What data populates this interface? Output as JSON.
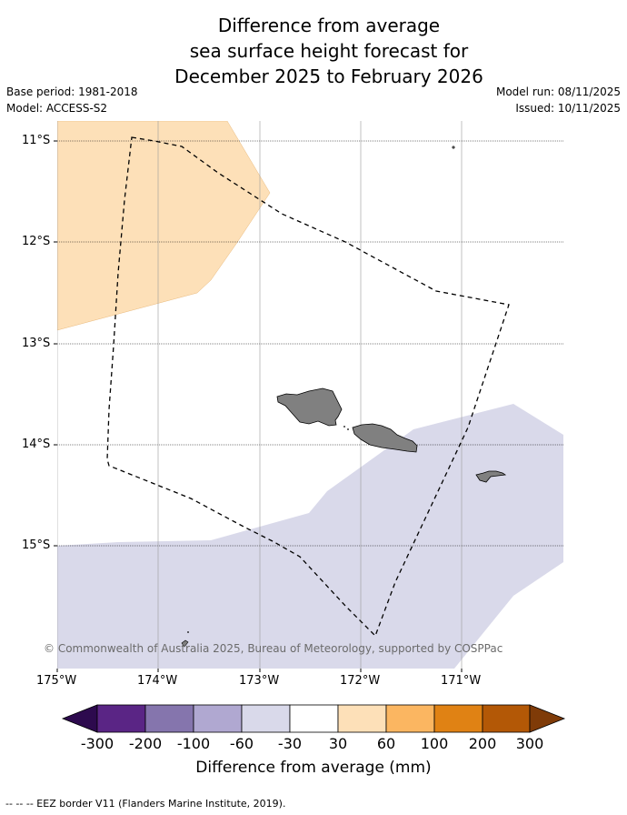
{
  "title_lines": [
    "Difference from average",
    "sea surface height forecast for",
    "December 2025 to February 2026"
  ],
  "base_period": "Base period: 1981-2018",
  "model": "Model: ACCESS-S2",
  "model_run": "Model run: 08/11/2025",
  "issued": "Issued: 10/11/2025",
  "lat_labels": [
    "11°S",
    "12°S",
    "13°S",
    "14°S",
    "15°S"
  ],
  "lon_labels": [
    "175°W",
    "174°W",
    "173°W",
    "172°W",
    "171°W"
  ],
  "credit": "© Commonwealth of Australia 2025, Bureau of Meteorology, supported by COSPPac",
  "colorbar": {
    "labels": [
      "-300",
      "-200",
      "-100",
      "-60",
      "-30",
      "30",
      "60",
      "100",
      "200",
      "300"
    ],
    "colors": [
      "#2d0a4e",
      "#5a2585",
      "#8575ad",
      "#b0a8d1",
      "#d9d9ea",
      "#ffffff",
      "#fde0b8",
      "#fbb661",
      "#e08214",
      "#b35806",
      "#7f3b08"
    ],
    "title": "Difference from average (mm)"
  },
  "footnote": "-- -- -- EEZ border V11 (Flanders Marine Institute, 2019).",
  "colors": {
    "positive_zone": "#fde0b8",
    "negative_zone": "#d9d9ea",
    "land": "#808080"
  }
}
